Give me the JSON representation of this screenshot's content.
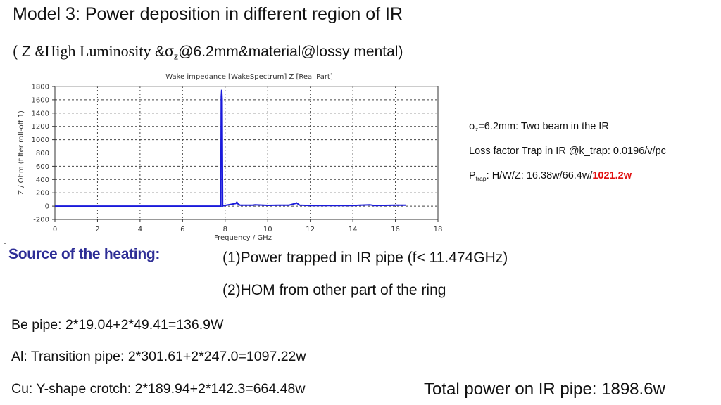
{
  "slide": {
    "title": "Model 3: Power deposition in different region of IR",
    "subtitle": {
      "open": "( Z &",
      "serif_part": "High Luminosity ",
      "amp": "&σ",
      "sub": "z",
      "rest": "@6.2mm&material@lossy mental)"
    }
  },
  "info": {
    "line1_pre": "σ",
    "line1_sub": "z",
    "line1_rest": "=6.2mm: Two beam in the IR",
    "line2": "Loss factor Trap in IR @k_trap: 0.0196/v/pc",
    "line3_pre": "P",
    "line3_sub": "trap",
    "line3_rest": ": H/W/Z: 16.38w/66.4w/",
    "line3_highlight": "1021.2w",
    "highlight_color": "#e01010"
  },
  "source": {
    "label": "Source of the heating:",
    "items": [
      "(1)Power trapped in IR pipe (f< 11.474GHz)",
      "(2)HOM from other part of the ring"
    ]
  },
  "breakdown": [
    "Be pipe: 2*19.04+2*49.41=136.9W",
    "Al: Transition pipe: 2*301.61+2*247.0=1097.22w",
    "Cu: Y-shape crotch: 2*189.94+2*142.3=664.48w"
  ],
  "total": "Total power on IR pipe: 1898.6w",
  "chart_data": {
    "type": "line",
    "title": "Wake impedance [WakeSpectrum] Z [Real Part]",
    "xlabel": "Frequency / GHz",
    "ylabel": "Z / Ohm (filter roll-off 1)",
    "xlim": [
      0,
      18
    ],
    "ylim": [
      -200,
      1800
    ],
    "xticks": [
      0,
      2,
      4,
      6,
      8,
      10,
      12,
      14,
      16,
      18
    ],
    "yticks": [
      -200,
      0,
      200,
      400,
      600,
      800,
      1000,
      1200,
      1400,
      1600,
      1800
    ],
    "grid": true,
    "line_color": "#1a1adb",
    "series": [
      {
        "name": "Z real part",
        "x": [
          0,
          7.8,
          7.82,
          7.84,
          7.86,
          7.88,
          7.9,
          8.5,
          8.55,
          8.6,
          8.7,
          9.3,
          9.4,
          10.0,
          10.5,
          11.0,
          11.3,
          11.35,
          11.5,
          12.0,
          13.0,
          14.0,
          14.8,
          15.0,
          16.0,
          16.5
        ],
        "values": [
          0,
          0,
          1650,
          1750,
          1600,
          0,
          5,
          40,
          60,
          35,
          15,
          15,
          20,
          12,
          15,
          15,
          40,
          50,
          15,
          8,
          10,
          10,
          20,
          10,
          15,
          15
        ]
      }
    ]
  }
}
